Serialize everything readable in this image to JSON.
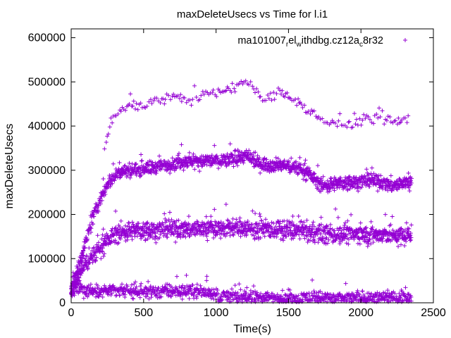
{
  "chart_data": {
    "type": "scatter",
    "title": "maxDeleteUsecs vs Time for l.i1",
    "xlabel": "Time(s)",
    "ylabel": "maxDeleteUsecs",
    "xlim": [
      0,
      2500
    ],
    "ylim": [
      0,
      620000
    ],
    "xticks": [
      0,
      500,
      1000,
      1500,
      2000,
      2500
    ],
    "yticks": [
      0,
      100000,
      200000,
      300000,
      400000,
      500000,
      600000
    ],
    "grid": false,
    "legend_position": "top-right",
    "marker": "+",
    "series": [
      {
        "name": "ma101007_rel_withdbg.cz12a_c8r32",
        "label_parts": [
          "ma101007",
          "r",
          "el",
          "w",
          "ithdbg.cz12a",
          "c",
          "8r32"
        ],
        "color": "#9400d3",
        "bands": [
          {
            "name": "low",
            "x": [
              0,
              25,
              50,
              75,
              100,
              125,
              150,
              175,
              200,
              250,
              300,
              350,
              400,
              450,
              500,
              550,
              600,
              650,
              700,
              750,
              800,
              850,
              900,
              950,
              1000,
              1050,
              1100,
              1150,
              1200,
              1250,
              1300,
              1350,
              1400,
              1450,
              1500,
              1550,
              1600,
              1650,
              1700,
              1750,
              1800,
              1850,
              1900,
              1950,
              2000,
              2050,
              2100,
              2150,
              2200,
              2250,
              2300,
              2350
            ],
            "y": [
              25000,
              30000,
              33000,
              30000,
              28000,
              30000,
              27000,
              30000,
              28000,
              27000,
              27000,
              25000,
              27000,
              25000,
              27000,
              26000,
              25000,
              27000,
              26000,
              25000,
              27000,
              26000,
              25000,
              25000,
              15000,
              14000,
              14000,
              13000,
              13000,
              13000,
              12000,
              12000,
              12000,
              12000,
              11000,
              11000,
              11000,
              11000,
              11000,
              11000,
              11000,
              11000,
              11000,
              11000,
              11000,
              11000,
              11000,
              11000,
              11000,
              11000,
              11000,
              11000
            ],
            "spread": 11000
          },
          {
            "name": "middle",
            "x": [
              0,
              25,
              50,
              75,
              100,
              125,
              150,
              175,
              200,
              250,
              300,
              350,
              400,
              450,
              500,
              550,
              600,
              650,
              700,
              750,
              800,
              850,
              900,
              950,
              1000,
              1050,
              1100,
              1150,
              1200,
              1250,
              1300,
              1350,
              1400,
              1450,
              1500,
              1550,
              1600,
              1650,
              1700,
              1750,
              1800,
              1850,
              1900,
              1950,
              2000,
              2050,
              2100,
              2150,
              2200,
              2250,
              2300,
              2350
            ],
            "y": [
              30000,
              40000,
              60000,
              75000,
              90000,
              100000,
              105000,
              115000,
              125000,
              140000,
              155000,
              160000,
              162000,
              163000,
              164000,
              165000,
              165000,
              166000,
              166000,
              167000,
              167000,
              168000,
              168000,
              168000,
              169000,
              170000,
              170000,
              170000,
              170000,
              168000,
              167000,
              166000,
              165000,
              165000,
              165000,
              163000,
              162000,
              160000,
              157000,
              155000,
              155000,
              155000,
              155000,
              155000,
              155000,
              154000,
              154000,
              153000,
              152000,
              152000,
              152000,
              152000
            ],
            "spread": 16000
          },
          {
            "name": "upper",
            "x": [
              0,
              25,
              50,
              75,
              100,
              125,
              150,
              175,
              200,
              250,
              300,
              350,
              400,
              450,
              500,
              550,
              600,
              650,
              700,
              750,
              800,
              850,
              900,
              950,
              1000,
              1050,
              1100,
              1150,
              1200,
              1250,
              1300,
              1350,
              1400,
              1450,
              1500,
              1550,
              1600,
              1650,
              1700,
              1750,
              1800,
              1850,
              1900,
              1950,
              2000,
              2050,
              2100,
              2150,
              2200,
              2250,
              2300,
              2350
            ],
            "y": [
              35000,
              55000,
              80000,
              110000,
              140000,
              165000,
              190000,
              215000,
              235000,
              270000,
              290000,
              298000,
              300000,
              302000,
              305000,
              305000,
              308000,
              312000,
              315000,
              318000,
              320000,
              320000,
              320000,
              322000,
              322000,
              323000,
              324000,
              328000,
              333000,
              322000,
              315000,
              313000,
              312000,
              311000,
              310000,
              306000,
              300000,
              290000,
              272000,
              265000,
              268000,
              270000,
              272000,
              274000,
              275000,
              276000,
              276000,
              272000,
              266000,
              267000,
              272000,
              274000
            ],
            "spread": 12000
          },
          {
            "name": "top",
            "x": [
              230,
              280,
              330,
              380,
              430,
              480,
              530,
              580,
              630,
              680,
              730,
              780,
              830,
              880,
              930,
              980,
              1030,
              1080,
              1130,
              1180,
              1230,
              1280,
              1330,
              1380,
              1430,
              1480,
              1530,
              1580,
              1650,
              1730,
              1780,
              1830,
              1880,
              1930,
              1980,
              2030,
              2080,
              2130,
              2180,
              2230,
              2280,
              2330
            ],
            "y": [
              345000,
              410000,
              430000,
              450000,
              448000,
              445000,
              452000,
              457000,
              462000,
              467000,
              470000,
              462000,
              458000,
              466000,
              470000,
              476000,
              478000,
              483000,
              487000,
              502000,
              492000,
              478000,
              462000,
              462000,
              482000,
              472000,
              462000,
              452000,
              432000,
              413000,
              407000,
              408000,
              403000,
              410000,
              408000,
              422000,
              418000,
              422000,
              412000,
              407000,
              413000,
              418000
            ],
            "spread": 9000
          }
        ]
      }
    ]
  }
}
